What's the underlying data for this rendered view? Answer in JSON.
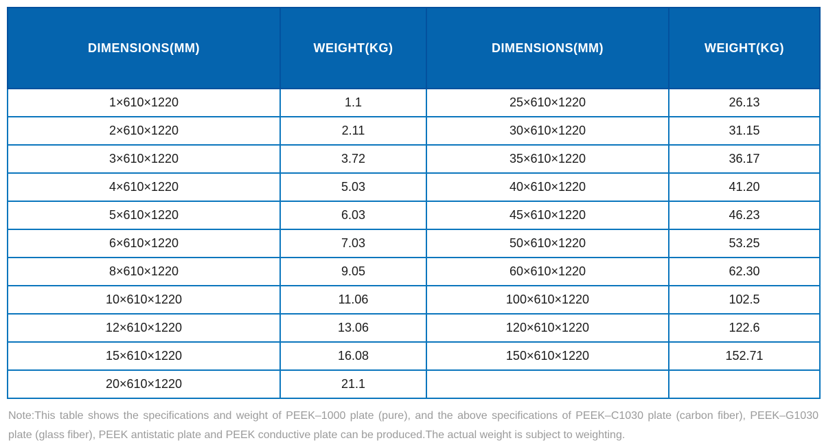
{
  "colors": {
    "header_bg": "#0564AE",
    "header_divider": "#03519E",
    "header_text": "#FFFFFF",
    "cell_border": "#0B76BD",
    "cell_text": "#1B1B1B",
    "note_text": "#9B9B9B"
  },
  "table": {
    "headers": [
      "DIMENSIONS(MM)",
      "WEIGHT(KG)",
      "DIMENSIONS(MM)",
      "WEIGHT(KG)"
    ],
    "rows": [
      [
        "1×610×1220",
        "1.1",
        "25×610×1220",
        "26.13"
      ],
      [
        "2×610×1220",
        "2.11",
        "30×610×1220",
        "31.15"
      ],
      [
        "3×610×1220",
        "3.72",
        "35×610×1220",
        "36.17"
      ],
      [
        "4×610×1220",
        "5.03",
        "40×610×1220",
        "41.20"
      ],
      [
        "5×610×1220",
        "6.03",
        "45×610×1220",
        "46.23"
      ],
      [
        "6×610×1220",
        "7.03",
        "50×610×1220",
        "53.25"
      ],
      [
        "8×610×1220",
        "9.05",
        "60×610×1220",
        "62.30"
      ],
      [
        "10×610×1220",
        "11.06",
        "100×610×1220",
        "102.5"
      ],
      [
        "12×610×1220",
        "13.06",
        "120×610×1220",
        "122.6"
      ],
      [
        "15×610×1220",
        "16.08",
        "150×610×1220",
        "152.71"
      ],
      [
        "20×610×1220",
        "21.1",
        "",
        ""
      ]
    ]
  },
  "note": {
    "text": "Note:This table shows the specifications and weight of PEEK–1000 plate (pure), and the above specifications of PEEK–C1030 plate (carbon fiber), PEEK–G1030 plate (glass fiber), PEEK antistatic plate and PEEK conductive plate can be produced.The actual weight is subject to weighting."
  }
}
